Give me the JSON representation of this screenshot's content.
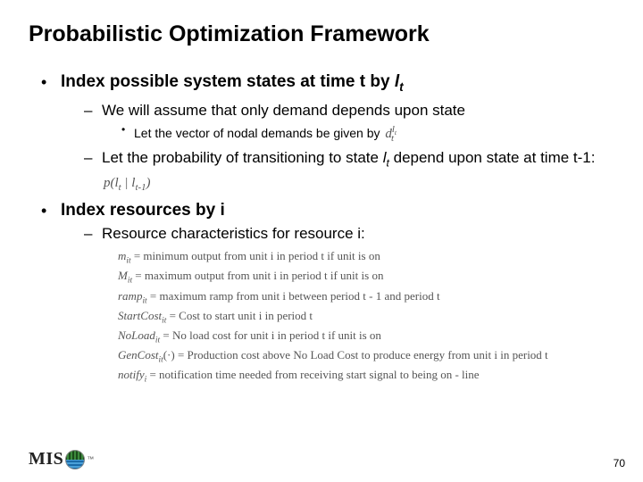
{
  "title": "Probabilistic Optimization Framework",
  "l1a": "Index possible system states at time t by ",
  "l1a_sym": "l",
  "l1a_sub": "t",
  "l2a": "We will assume that only demand depends upon state",
  "l3a": "Let the vector of nodal demands be given by ",
  "l3a_math_base": "d",
  "l3a_math_sup": "l",
  "l3a_math_supsub": "t",
  "l3a_math_sub": "t",
  "l2b_1": "Let the probability of transitioning to state ",
  "l2b_sym": "l",
  "l2b_sub": "t",
  "l2b_2": " depend upon state at time t-1:   ",
  "l2b_math": "p(l₁ | l₁₋₁)",
  "l2b_math_display": "p( l_t | l_{t-1} )",
  "l1b": "Index resources by i",
  "l2c": "Resource characteristics for resource i:",
  "defs": [
    {
      "sym": "m",
      "sub": "it",
      "eq": " = minimum output from unit i in period t if unit is on"
    },
    {
      "sym": "M",
      "sub": "it",
      "eq": " = maximum output from unit i in period t if unit is on"
    },
    {
      "sym": "ramp",
      "sub": "it",
      "eq": " = maximum ramp from unit i between period t - 1 and period t"
    },
    {
      "sym": "StartCost",
      "sub": "it",
      "eq": " = Cost to start unit i in period t"
    },
    {
      "sym": "NoLoad",
      "sub": "it",
      "eq": " = No load cost for unit i in period t if unit is on"
    },
    {
      "sym": "GenCost",
      "sub": "it",
      "tail": "(·)",
      "eq": " = Production cost above No Load Cost to produce energy from unit i in period t"
    },
    {
      "sym": "notify",
      "sub": "i",
      "eq": " = notification time needed from receiving start signal to being on - line"
    }
  ],
  "logo_text": "MIS",
  "page_number": "70",
  "colors": {
    "text": "#000000",
    "math_gray": "#555555",
    "bg": "#ffffff"
  }
}
